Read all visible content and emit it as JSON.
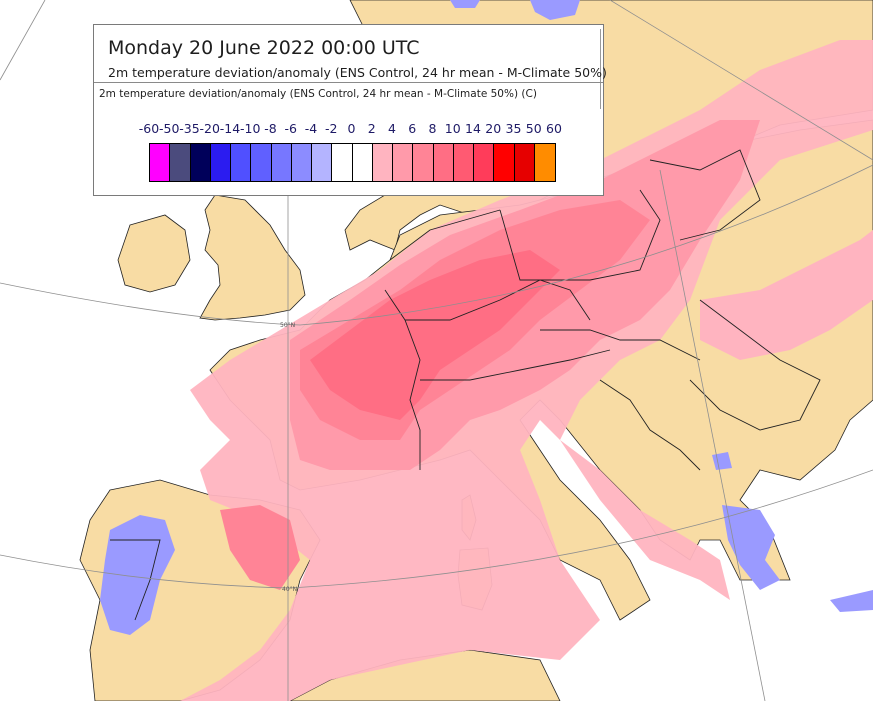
{
  "header": {
    "title": "Monday 20 June 2022 00:00 UTC",
    "subtitle": "2m temperature deviation/anomaly (ENS Control, 24 hr mean - M-Climate 50%)"
  },
  "legend": {
    "label": "2m temperature deviation/anomaly (ENS Control, 24 hr mean - M-Climate 50%) (C)",
    "ticks": [
      "-60",
      "-50",
      "-35",
      "-20",
      "-14",
      "-10",
      "-8",
      "-6",
      "-4",
      "-2",
      "0",
      "2",
      "4",
      "6",
      "8",
      "10",
      "14",
      "20",
      "35",
      "50",
      "60"
    ],
    "colors": [
      "#ff00ff",
      "#4b4b7d",
      "#00005a",
      "#2b1cf0",
      "#5050ff",
      "#6060ff",
      "#7777ff",
      "#8c8cff",
      "#b4b4ff",
      "#ffffff",
      "#ffffff",
      "#ffb4c0",
      "#ff9aaa",
      "#ff8496",
      "#ff6e84",
      "#ff5a72",
      "#ff3c5a",
      "#ff0000",
      "#e60000",
      "#ff8c00"
    ]
  },
  "grid_labels": {
    "lat50": "50°N",
    "lat40": "40°N"
  },
  "map_colors": {
    "sea": "#ffffff",
    "land": "#f8dca4",
    "anomaly_light": "#ffb4c0",
    "anomaly_mid": "#ff9aaa",
    "anomaly_strong": "#ff8496",
    "anomaly_hot": "#ff6e84",
    "cold": "#9a9aff"
  }
}
